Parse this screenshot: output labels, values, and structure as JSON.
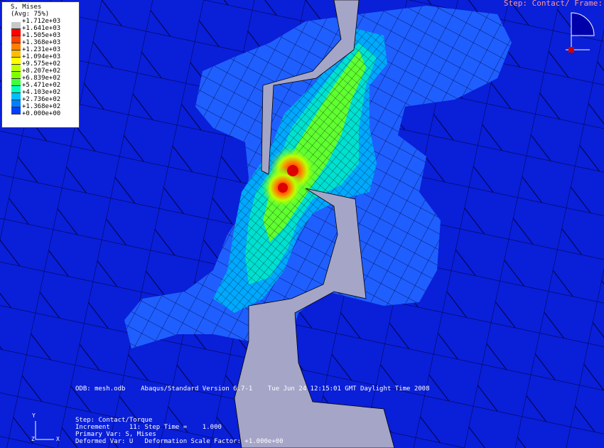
{
  "legend": {
    "title": "S, Mises",
    "subtitle": "(Avg: 75%)",
    "values": [
      "+1.712e+03",
      "+1.641e+03",
      "+1.505e+03",
      "+1.368e+03",
      "+1.231e+03",
      "+1.094e+03",
      "+9.575e+02",
      "+8.207e+02",
      "+6.839e+02",
      "+5.471e+02",
      "+4.103e+02",
      "+2.736e+02",
      "+1.368e+02",
      "+0.000e+00"
    ],
    "colors": [
      "#c8c8c8",
      "#ff0000",
      "#ff4000",
      "#ff8000",
      "#ffbf00",
      "#ffff00",
      "#bfff00",
      "#80ff00",
      "#40ff40",
      "#00ffbf",
      "#00bfff",
      "#0080ff",
      "#0040ff",
      "#000080"
    ]
  },
  "step_top": "Step: Contact/ Frame:",
  "odb_line": "ODB: mesh.odb    Abaqus/Standard Version 6.7-1    Tue Jun 24 12:15:01 GMT Daylight Time 2008",
  "step_info": {
    "line1": "Step: Contact/Torque",
    "line2": "Increment     11: Step Time =    1.000",
    "line3": "Primary Var: S, Mises",
    "line4": "Deformed Var: U   Deformation Scale Factor: +1.000e+00"
  },
  "triad": {
    "x": "X",
    "y": "Y",
    "z": "Z"
  },
  "colors": {
    "background": "#0a1fd8",
    "gap": "#a5a5c8"
  }
}
